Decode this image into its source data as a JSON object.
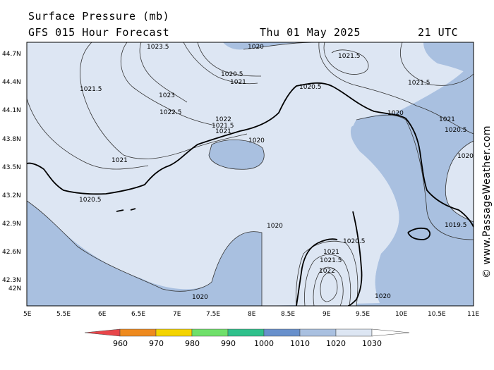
{
  "header": {
    "title": "Surface Pressure (mb)",
    "subtitle_left": "GFS 015 Hour Forecast",
    "date": "Thu 01 May 2025",
    "time": "21 UTC"
  },
  "map": {
    "lat_ticks": [
      "44.7N",
      "44.4N",
      "44.1N",
      "43.8N",
      "43.5N",
      "43.2N",
      "42.9N",
      "42.6N",
      "42.3N",
      "42N"
    ],
    "lon_ticks": [
      "5E",
      "5.5E",
      "6E",
      "6.5E",
      "7E",
      "7.5E",
      "8E",
      "8.5E",
      "9E",
      "9.5E",
      "10E",
      "10.5E",
      "11E"
    ],
    "colors": {
      "sea_fill": "#a9c0e0",
      "high_fill": "#dde6f3",
      "coast": "#000000",
      "isobar": "#333333"
    },
    "isobar_labels": [
      "1023.5",
      "1020",
      "1021.5",
      "1020.5",
      "1021",
      "1021.5",
      "1023",
      "1022.5",
      "1020.5",
      "1020",
      "1021.5",
      "1022",
      "1021.5",
      "1021",
      "1020",
      "1021",
      "1020",
      "1021",
      "1020.5",
      "1020.5",
      "1020",
      "1019.5",
      "1020.5",
      "1021",
      "1021.5",
      "1022",
      "1020",
      "1020"
    ]
  },
  "scale": {
    "labels": [
      "960",
      "970",
      "980",
      "990",
      "1000",
      "1010",
      "1020",
      "1030"
    ],
    "colors": [
      "#e8454a",
      "#ee8a1e",
      "#f4d400",
      "#6fe06a",
      "#2fc08b",
      "#6890cc",
      "#a9c0e0",
      "#dde6f3"
    ]
  },
  "watermark": "© www.PassageWeather.com"
}
